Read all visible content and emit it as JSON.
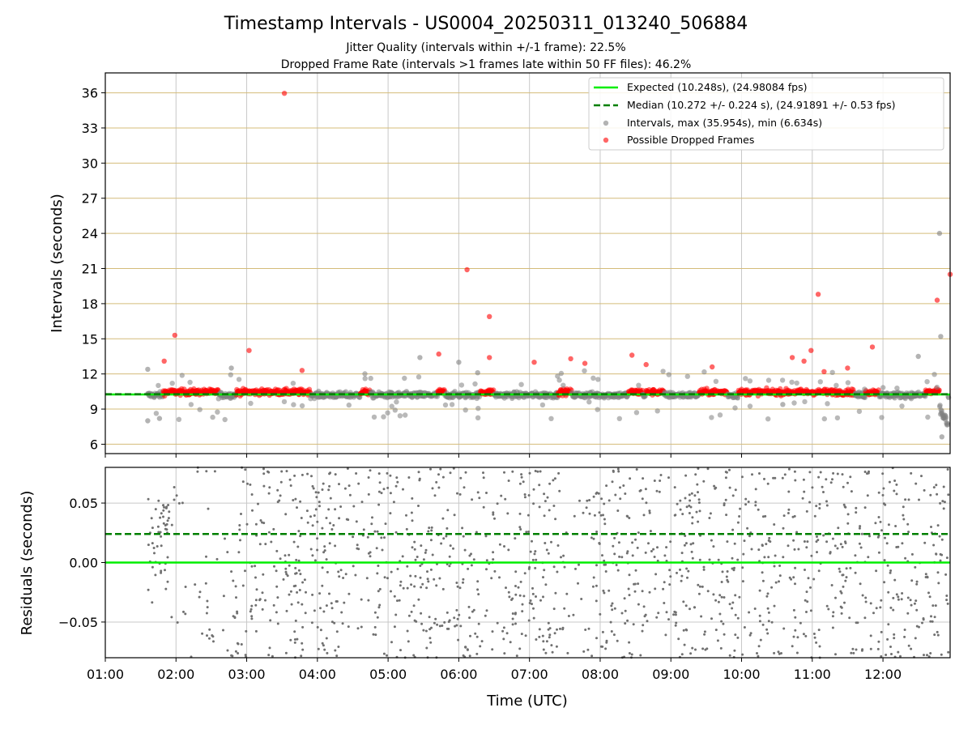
{
  "chart_data": [
    {
      "type": "scatter",
      "title": "Timestamp Intervals - US0004_20250311_013240_506884",
      "subtitles": [
        "Jitter Quality (intervals within +/-1 frame): 22.5%",
        "Dropped Frame Rate (intervals >1 frames late within 50 FF files): 46.2%"
      ],
      "ylabel": "Intervals (seconds)",
      "ylim": [
        5.2,
        37.7
      ],
      "yticks": [
        6,
        9,
        12,
        15,
        18,
        21,
        24,
        27,
        30,
        33,
        36
      ],
      "xlim_hours": [
        1.0,
        12.95
      ],
      "grid": "horizontal lines at y ticks (tan), vertical at x ticks (gray)",
      "legend_position": "top-right",
      "legend": [
        "Expected (10.248s), (24.98084 fps)",
        "Median (10.272 +/- 0.224 s), (24.91891 +/- 0.53 fps)",
        "Intervals, max (35.954s), min (6.634s)",
        "Possible Dropped Frames"
      ],
      "expected_line": 10.248,
      "median_line": 10.272,
      "series_colors": {
        "expected": "#00ee00",
        "median": "#007f00",
        "intervals": "#808080",
        "dropped": "#ff0000"
      },
      "outliers_dropped": [
        {
          "x": "01:50",
          "y": 13.1
        },
        {
          "x": "01:59",
          "y": 15.3
        },
        {
          "x": "03:02",
          "y": 14.0
        },
        {
          "x": "03:32",
          "y": 35.954
        },
        {
          "x": "03:47",
          "y": 12.3
        },
        {
          "x": "05:43",
          "y": 13.7
        },
        {
          "x": "06:07",
          "y": 20.9
        },
        {
          "x": "06:26",
          "y": 16.9
        },
        {
          "x": "06:26",
          "y": 13.4
        },
        {
          "x": "07:04",
          "y": 13.0
        },
        {
          "x": "07:35",
          "y": 13.3
        },
        {
          "x": "07:47",
          "y": 12.9
        },
        {
          "x": "08:27",
          "y": 13.6
        },
        {
          "x": "08:39",
          "y": 12.8
        },
        {
          "x": "09:35",
          "y": 12.6
        },
        {
          "x": "10:43",
          "y": 13.4
        },
        {
          "x": "10:53",
          "y": 13.1
        },
        {
          "x": "10:59",
          "y": 14.0
        },
        {
          "x": "11:05",
          "y": 18.8
        },
        {
          "x": "11:10",
          "y": 12.2
        },
        {
          "x": "11:30",
          "y": 12.5
        },
        {
          "x": "11:51",
          "y": 14.3
        },
        {
          "x": "12:46",
          "y": 18.3
        },
        {
          "x": "12:57",
          "y": 20.5
        }
      ],
      "outliers_intervals": [
        {
          "x": "01:36",
          "y": 12.4
        },
        {
          "x": "01:36",
          "y": 8.0
        },
        {
          "x": "01:46",
          "y": 8.2
        },
        {
          "x": "02:47",
          "y": 12.5
        },
        {
          "x": "05:27",
          "y": 13.4
        },
        {
          "x": "06:00",
          "y": 13.0
        },
        {
          "x": "06:16",
          "y": 12.1
        },
        {
          "x": "10:35",
          "y": 9.4
        },
        {
          "x": "12:30",
          "y": 13.5
        },
        {
          "x": "12:48",
          "y": 24.0
        },
        {
          "x": "12:49",
          "y": 15.2
        },
        {
          "x": "12:50",
          "y": 6.634
        }
      ]
    },
    {
      "type": "scatter",
      "xlabel": "Time (UTC)",
      "ylabel": "Residuals (seconds)",
      "ylim": [
        -0.08,
        0.08
      ],
      "yticks": [
        "−0.05",
        "0.00",
        "0.05"
      ],
      "xticks": [
        "01:00",
        "02:00",
        "03:00",
        "04:00",
        "05:00",
        "06:00",
        "07:00",
        "08:00",
        "09:00",
        "10:00",
        "11:00",
        "12:00"
      ],
      "zero_line": 0.0,
      "median_offset_line": 0.024,
      "series_colors": {
        "zero": "#00ee00",
        "median": "#007f00",
        "points": "#707070"
      }
    }
  ]
}
